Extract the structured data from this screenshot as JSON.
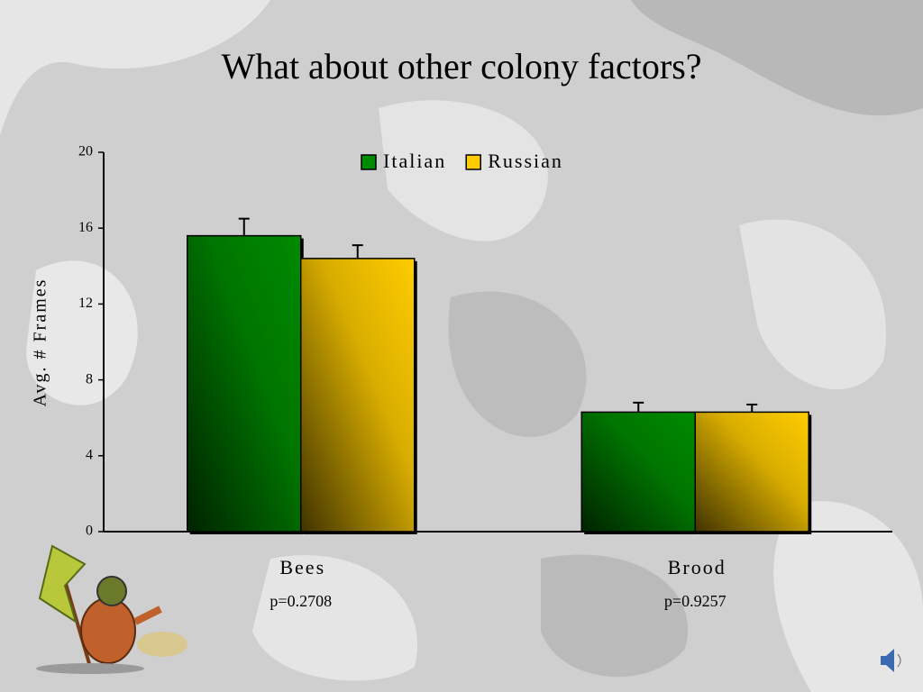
{
  "chart_data": {
    "type": "bar",
    "title": "What about other colony factors?",
    "y_label": "Avg. # Frames",
    "categories": [
      "Bees",
      "Brood"
    ],
    "annotations": [
      "p=0.2708",
      "p=0.9257"
    ],
    "series": [
      {
        "name": "Italian",
        "color": "#008a00",
        "values": [
          15.6,
          6.3
        ],
        "errors": [
          0.9,
          0.5
        ]
      },
      {
        "name": "Russian",
        "color": "#ffcc00",
        "values": [
          14.4,
          6.3
        ],
        "errors": [
          0.7,
          0.4
        ]
      }
    ],
    "ylim": [
      0,
      20
    ],
    "yticks": [
      0,
      4,
      8,
      12,
      16,
      20
    ],
    "legend": "top"
  }
}
